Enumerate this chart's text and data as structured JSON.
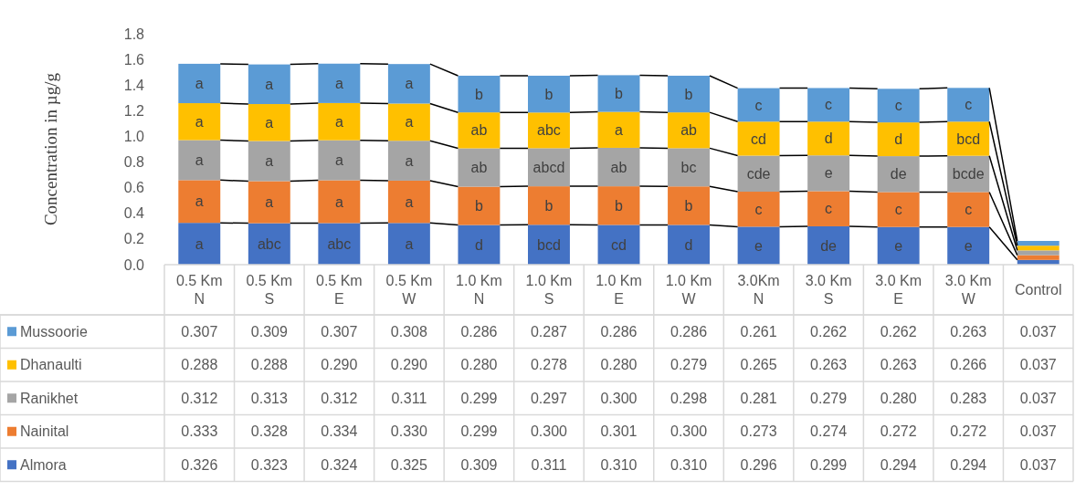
{
  "chart_data": {
    "type": "bar",
    "stacked": true,
    "ylabel": "Concentration in µg/g",
    "categories": [
      "0.5 Km\nN",
      "0.5 Km\nS",
      "0.5 Km\nE",
      "0.5 Km\nW",
      "1.0 Km\nN",
      "1.0 Km\nS",
      "1.0 Km\nE",
      "1.0 Km\nW",
      "3.0Km\nN",
      "3.0 Km\nS",
      "3.0 Km\nE",
      "3.0 Km\nW",
      "Control"
    ],
    "series": [
      {
        "name": "Almora",
        "color": "#4472c4",
        "values": [
          0.326,
          0.323,
          0.324,
          0.325,
          0.309,
          0.311,
          0.31,
          0.31,
          0.296,
          0.299,
          0.294,
          0.294,
          0.037
        ],
        "value_labels": [
          "0.326",
          "0.323",
          "0.324",
          "0.325",
          "0.309",
          "0.311",
          "0.310",
          "0.310",
          "0.296",
          "0.299",
          "0.294",
          "0.294",
          "0.037"
        ]
      },
      {
        "name": "Nainital",
        "color": "#ed7d31",
        "values": [
          0.333,
          0.328,
          0.334,
          0.33,
          0.299,
          0.3,
          0.301,
          0.3,
          0.273,
          0.274,
          0.272,
          0.272,
          0.037
        ],
        "value_labels": [
          "0.333",
          "0.328",
          "0.334",
          "0.330",
          "0.299",
          "0.300",
          "0.301",
          "0.300",
          "0.273",
          "0.274",
          "0.272",
          "0.272",
          "0.037"
        ]
      },
      {
        "name": "Ranikhet",
        "color": "#a5a5a5",
        "values": [
          0.312,
          0.313,
          0.312,
          0.311,
          0.299,
          0.297,
          0.3,
          0.298,
          0.281,
          0.279,
          0.28,
          0.283,
          0.037
        ],
        "value_labels": [
          "0.312",
          "0.313",
          "0.312",
          "0.311",
          "0.299",
          "0.297",
          "0.300",
          "0.298",
          "0.281",
          "0.279",
          "0.280",
          "0.283",
          "0.037"
        ]
      },
      {
        "name": "Dhanaulti",
        "color": "#ffc000",
        "values": [
          0.288,
          0.288,
          0.29,
          0.29,
          0.28,
          0.278,
          0.28,
          0.279,
          0.265,
          0.263,
          0.263,
          0.266,
          0.037
        ],
        "value_labels": [
          "0.288",
          "0.288",
          "0.290",
          "0.290",
          "0.280",
          "0.278",
          "0.280",
          "0.279",
          "0.265",
          "0.263",
          "0.263",
          "0.266",
          "0.037"
        ]
      },
      {
        "name": "Mussoorie",
        "color": "#5b9bd5",
        "values": [
          0.307,
          0.309,
          0.307,
          0.308,
          0.286,
          0.287,
          0.286,
          0.286,
          0.261,
          0.262,
          0.262,
          0.263,
          0.037
        ],
        "value_labels": [
          "0.307",
          "0.309",
          "0.307",
          "0.308",
          "0.286",
          "0.287",
          "0.286",
          "0.286",
          "0.261",
          "0.262",
          "0.262",
          "0.263",
          "0.037"
        ]
      }
    ],
    "annotations": [
      "a",
      "a",
      "a",
      "a",
      "a",
      "abc",
      "a",
      "a",
      "a",
      "a",
      "abc",
      "a",
      "a",
      "a",
      "a",
      "a",
      "a",
      "a",
      "a",
      "a",
      "d",
      "b",
      "ab",
      "ab",
      "b",
      "bcd",
      "b",
      "abcd",
      "abc",
      "b",
      "cd",
      "b",
      "ab",
      "a",
      "b",
      "d",
      "b",
      "bc",
      "ab",
      "b",
      "e",
      "c",
      "cde",
      "cd",
      "c",
      "de",
      "c",
      "e",
      "d",
      "c",
      "e",
      "c",
      "de",
      "d",
      "c",
      "e",
      "c",
      "bcde",
      "bcd",
      "c"
    ],
    "ylim": [
      0,
      1.8
    ],
    "yticks": [
      {
        "value": 0,
        "label": "0.0"
      },
      {
        "value": 0.2,
        "label": "0.2"
      },
      {
        "value": 0.4,
        "label": "0.4"
      },
      {
        "value": 0.6,
        "label": "0.6"
      },
      {
        "value": 0.8,
        "label": "0.8"
      },
      {
        "value": 1.0,
        "label": "1.0"
      },
      {
        "value": 1.2,
        "label": "1.2"
      },
      {
        "value": 1.4,
        "label": "1.4"
      },
      {
        "value": 1.6,
        "label": "1.6"
      },
      {
        "value": 1.8,
        "label": "1.8"
      }
    ],
    "legend": "bottom left",
    "grid": false
  }
}
